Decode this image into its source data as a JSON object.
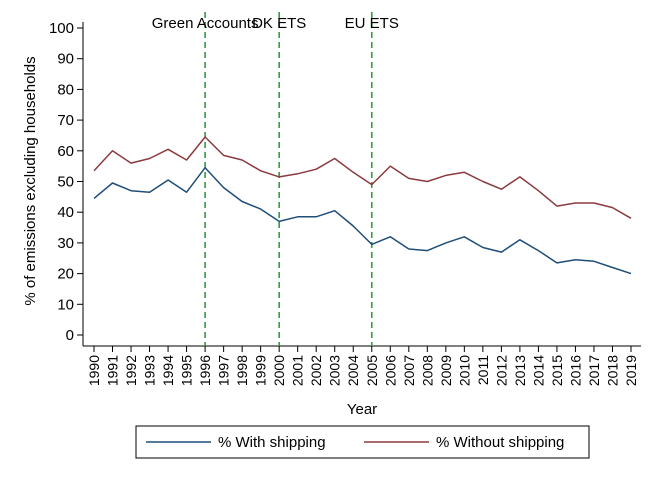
{
  "chart_data": {
    "type": "line",
    "title": "",
    "xlabel": "Year",
    "ylabel": "% of emissions excluding households",
    "ylim": [
      0,
      100
    ],
    "yticks": [
      0,
      10,
      20,
      30,
      40,
      50,
      60,
      70,
      80,
      90,
      100
    ],
    "x": [
      1990,
      1991,
      1992,
      1993,
      1994,
      1995,
      1996,
      1997,
      1998,
      1999,
      2000,
      2001,
      2002,
      2003,
      2004,
      2005,
      2006,
      2007,
      2008,
      2009,
      2010,
      2011,
      2012,
      2013,
      2014,
      2015,
      2016,
      2017,
      2018,
      2019
    ],
    "series": [
      {
        "name": "% With shipping",
        "color": "#1f4e79",
        "values": [
          44.5,
          49.5,
          47,
          46.5,
          50.5,
          46.5,
          54.5,
          48,
          43.5,
          41,
          37,
          38.5,
          38.5,
          40.5,
          35.5,
          29.5,
          32,
          28,
          27.5,
          30,
          32,
          28.5,
          27,
          31,
          27.5,
          23.5,
          24.5,
          24,
          22,
          20
        ]
      },
      {
        "name": "% Without shipping",
        "color": "#8b3a3f",
        "values": [
          53.5,
          60,
          56,
          57.5,
          60.5,
          57,
          64.5,
          58.5,
          57,
          53.5,
          51.5,
          52.5,
          54,
          57.5,
          53,
          49,
          55,
          51,
          50,
          52,
          53,
          50,
          47.5,
          51.5,
          47,
          42,
          43,
          43,
          41.5,
          38
        ]
      }
    ],
    "vlines": [
      {
        "x": 1996,
        "label": "Green Accounts",
        "color": "#2e9e3a"
      },
      {
        "x": 2000,
        "label": "DK ETS",
        "color": "#2e9e3a"
      },
      {
        "x": 2005,
        "label": "EU ETS",
        "color": "#2e9e3a"
      }
    ],
    "grid": false,
    "legend_position": "bottom"
  }
}
